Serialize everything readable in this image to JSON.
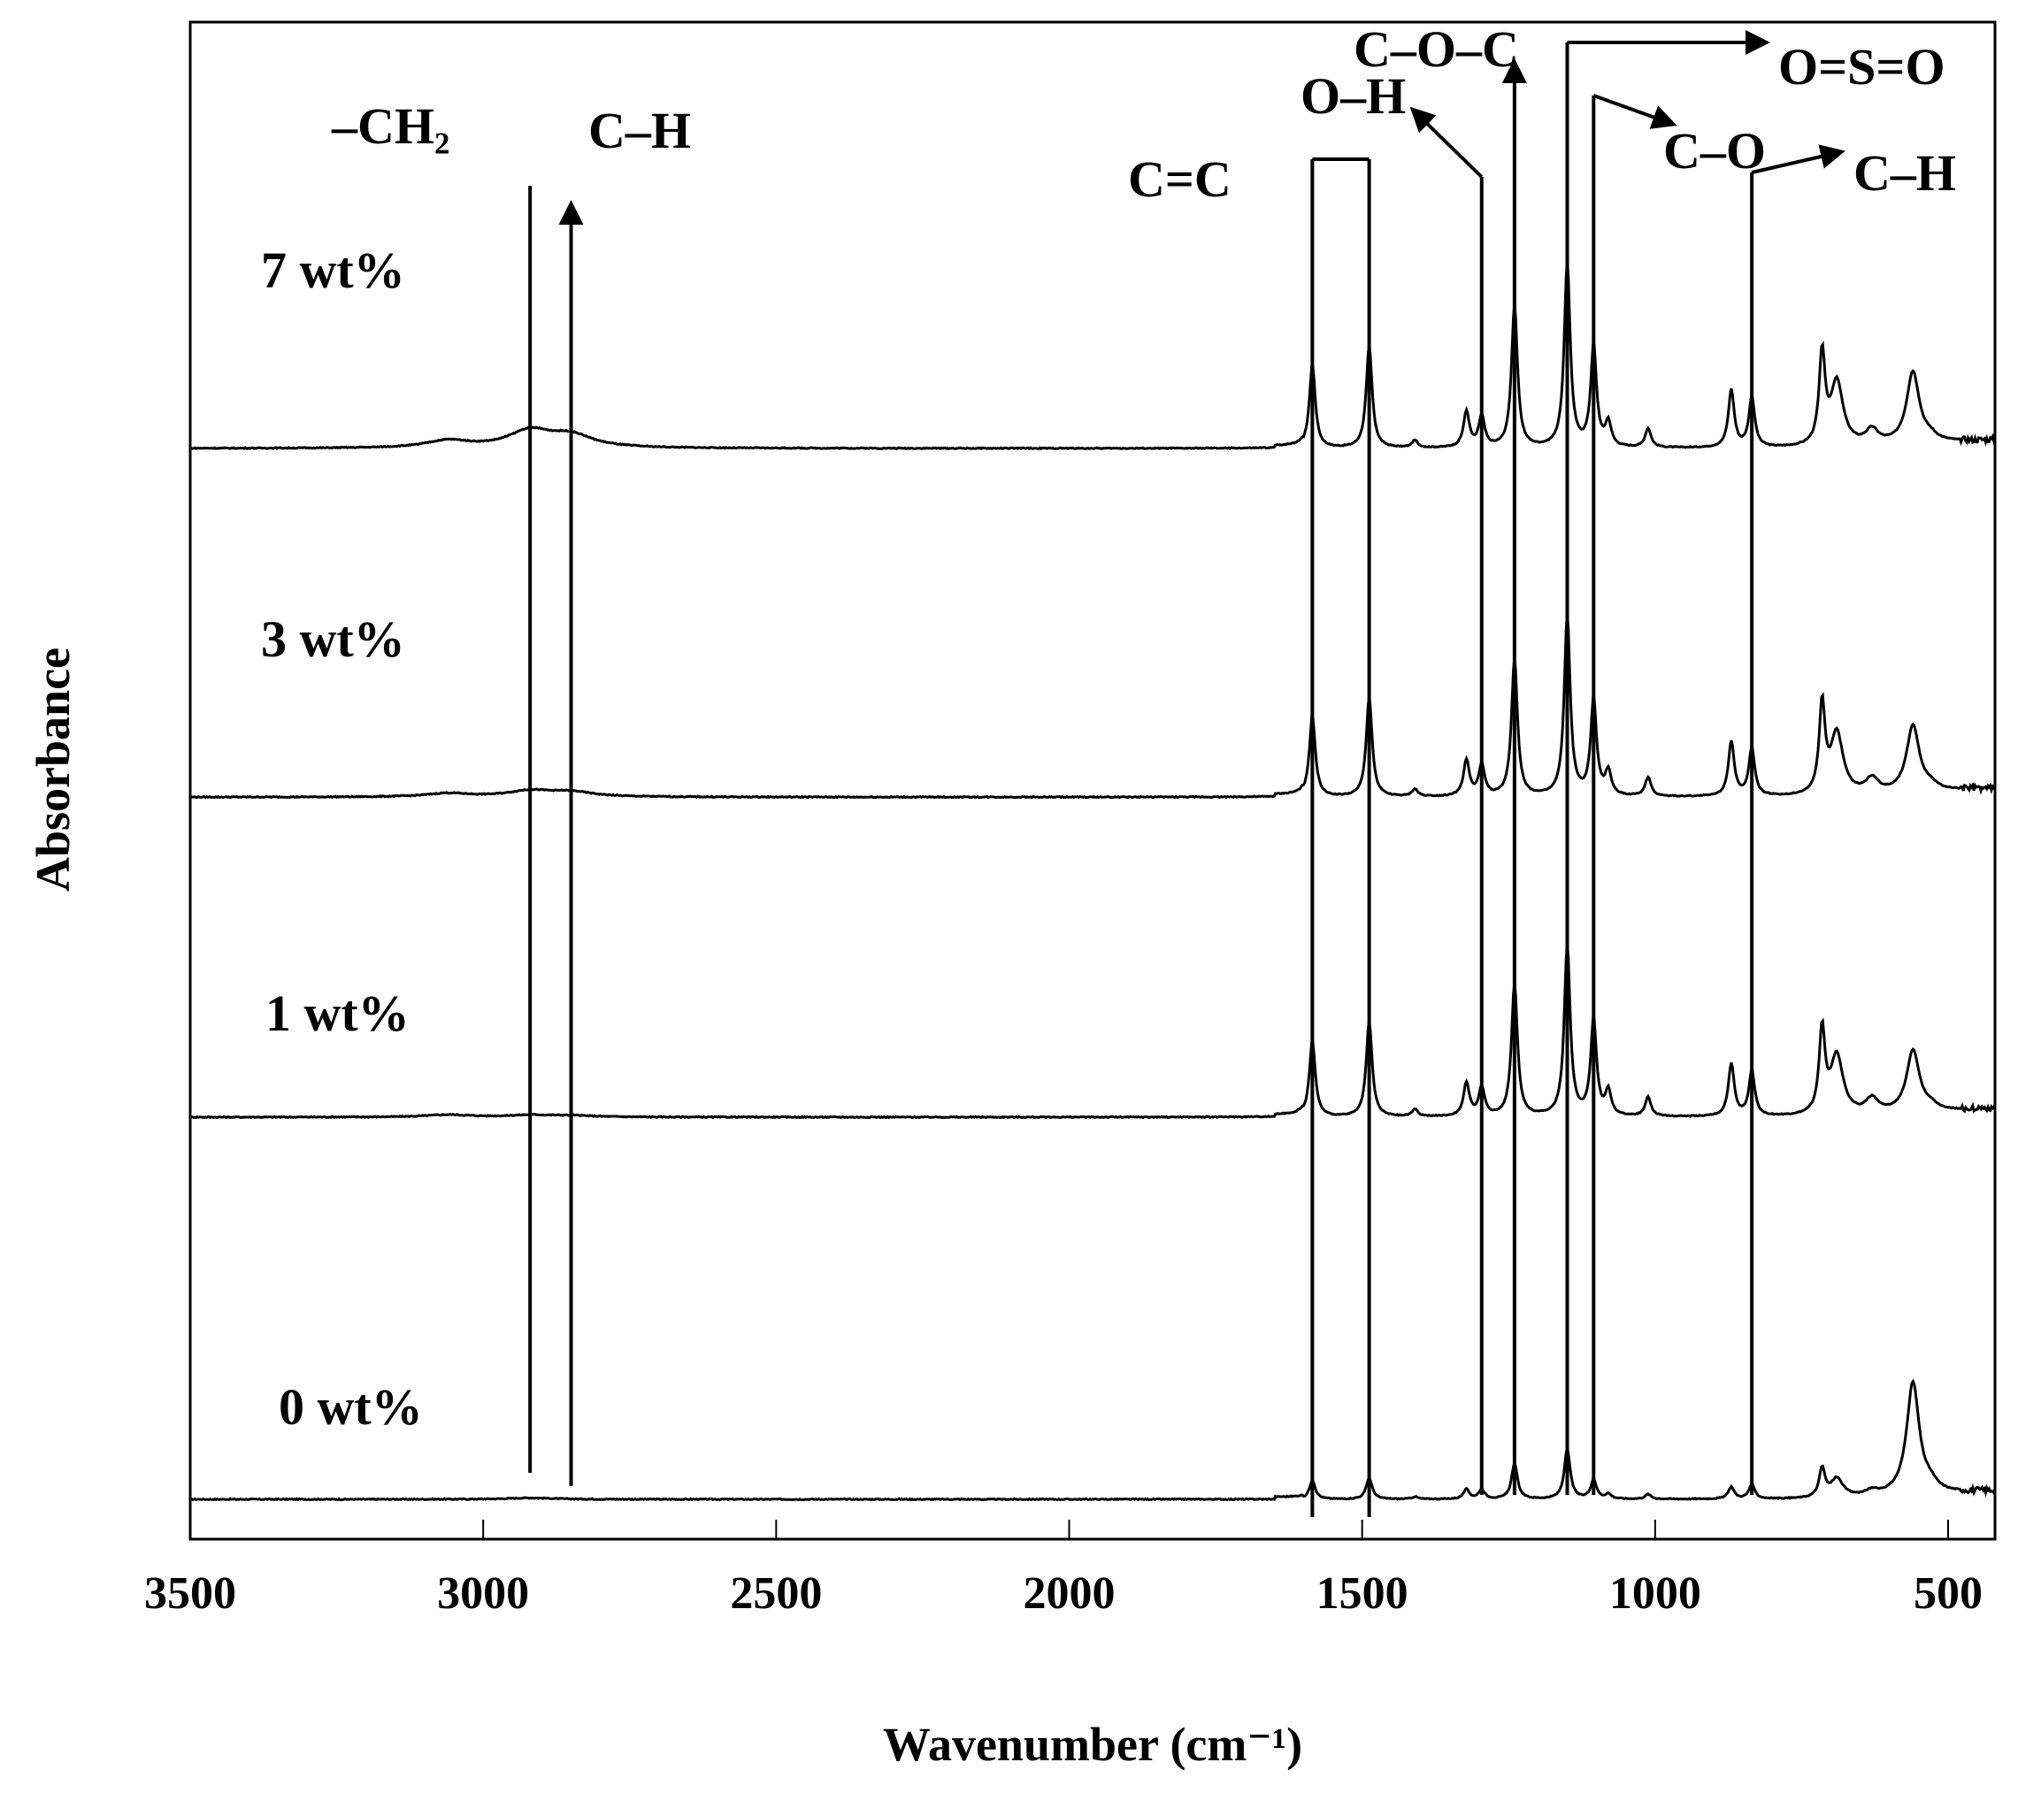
{
  "chart_data": {
    "type": "line",
    "title": "",
    "xlabel": "Wavenumber (cm⁻¹)",
    "ylabel": "Absorbance",
    "xlim": [
      3500,
      420
    ],
    "x_reversed": true,
    "x_ticks": [
      3500,
      3000,
      2500,
      2000,
      1500,
      1000,
      500
    ],
    "x_tick_labels": [
      "3500",
      "3000",
      "2500",
      "2000",
      "1500",
      "1000",
      "500"
    ],
    "grid": false,
    "legend": "none",
    "line_color": "#000000",
    "series": [
      {
        "label": "0 wt%",
        "offset": 0,
        "peaks": [
          [
            2920,
            0.006
          ],
          [
            1585,
            0.08
          ],
          [
            1488,
            0.09
          ],
          [
            1410,
            0.01
          ],
          [
            1322,
            0.04
          ],
          [
            1296,
            0.04
          ],
          [
            1240,
            0.15
          ],
          [
            1150,
            0.21
          ],
          [
            1105,
            0.08
          ],
          [
            1080,
            0.02
          ],
          [
            1012,
            0.02
          ],
          [
            870,
            0.05
          ],
          [
            835,
            0.06
          ],
          [
            715,
            0.12
          ],
          [
            690,
            0.08
          ],
          [
            630,
            0.02
          ],
          [
            560,
            0.47
          ],
          [
            530,
            0.03
          ]
        ]
      },
      {
        "label": "1 wt%",
        "offset": 1.6,
        "peaks": [
          [
            3060,
            0.01
          ],
          [
            2920,
            0.008
          ],
          [
            2850,
            0.006
          ],
          [
            1585,
            0.32
          ],
          [
            1488,
            0.4
          ],
          [
            1410,
            0.03
          ],
          [
            1322,
            0.14
          ],
          [
            1296,
            0.12
          ],
          [
            1240,
            0.56
          ],
          [
            1150,
            0.72
          ],
          [
            1105,
            0.4
          ],
          [
            1080,
            0.1
          ],
          [
            1012,
            0.08
          ],
          [
            870,
            0.22
          ],
          [
            835,
            0.19
          ],
          [
            715,
            0.35
          ],
          [
            690,
            0.25
          ],
          [
            630,
            0.06
          ],
          [
            560,
            0.26
          ],
          [
            530,
            0.02
          ]
        ]
      },
      {
        "label": "3 wt%",
        "offset": 2.94,
        "peaks": [
          [
            3060,
            0.015
          ],
          [
            2920,
            0.025
          ],
          [
            2850,
            0.02
          ],
          [
            1585,
            0.34
          ],
          [
            1488,
            0.42
          ],
          [
            1410,
            0.03
          ],
          [
            1322,
            0.15
          ],
          [
            1296,
            0.13
          ],
          [
            1240,
            0.58
          ],
          [
            1150,
            0.76
          ],
          [
            1105,
            0.4
          ],
          [
            1080,
            0.1
          ],
          [
            1012,
            0.08
          ],
          [
            870,
            0.23
          ],
          [
            835,
            0.2
          ],
          [
            715,
            0.37
          ],
          [
            690,
            0.26
          ],
          [
            630,
            0.06
          ],
          [
            560,
            0.28
          ],
          [
            530,
            0.02
          ]
        ]
      },
      {
        "label": "7 wt%",
        "offset": 4.4,
        "peaks": [
          [
            3060,
            0.03
          ],
          [
            2920,
            0.07
          ],
          [
            2850,
            0.05
          ],
          [
            1585,
            0.35
          ],
          [
            1488,
            0.43
          ],
          [
            1410,
            0.03
          ],
          [
            1322,
            0.15
          ],
          [
            1296,
            0.13
          ],
          [
            1240,
            0.6
          ],
          [
            1150,
            0.78
          ],
          [
            1105,
            0.42
          ],
          [
            1080,
            0.1
          ],
          [
            1012,
            0.08
          ],
          [
            870,
            0.24
          ],
          [
            835,
            0.21
          ],
          [
            715,
            0.38
          ],
          [
            690,
            0.27
          ],
          [
            630,
            0.06
          ],
          [
            560,
            0.3
          ],
          [
            530,
            0.02
          ]
        ]
      }
    ],
    "annotations": [
      {
        "label": "–CH₂",
        "x": 2920
      },
      {
        "label": "C–H",
        "x": 2850
      },
      {
        "label": "C=C",
        "x": 1585
      },
      {
        "label": "O–H",
        "x": 1488
      },
      {
        "label": "C–O–C",
        "x": 1240
      },
      {
        "label": "O=S=O",
        "x": 1150
      },
      {
        "label": "C–O",
        "x": 1105
      },
      {
        "label": "C–H",
        "x": 835
      }
    ]
  }
}
